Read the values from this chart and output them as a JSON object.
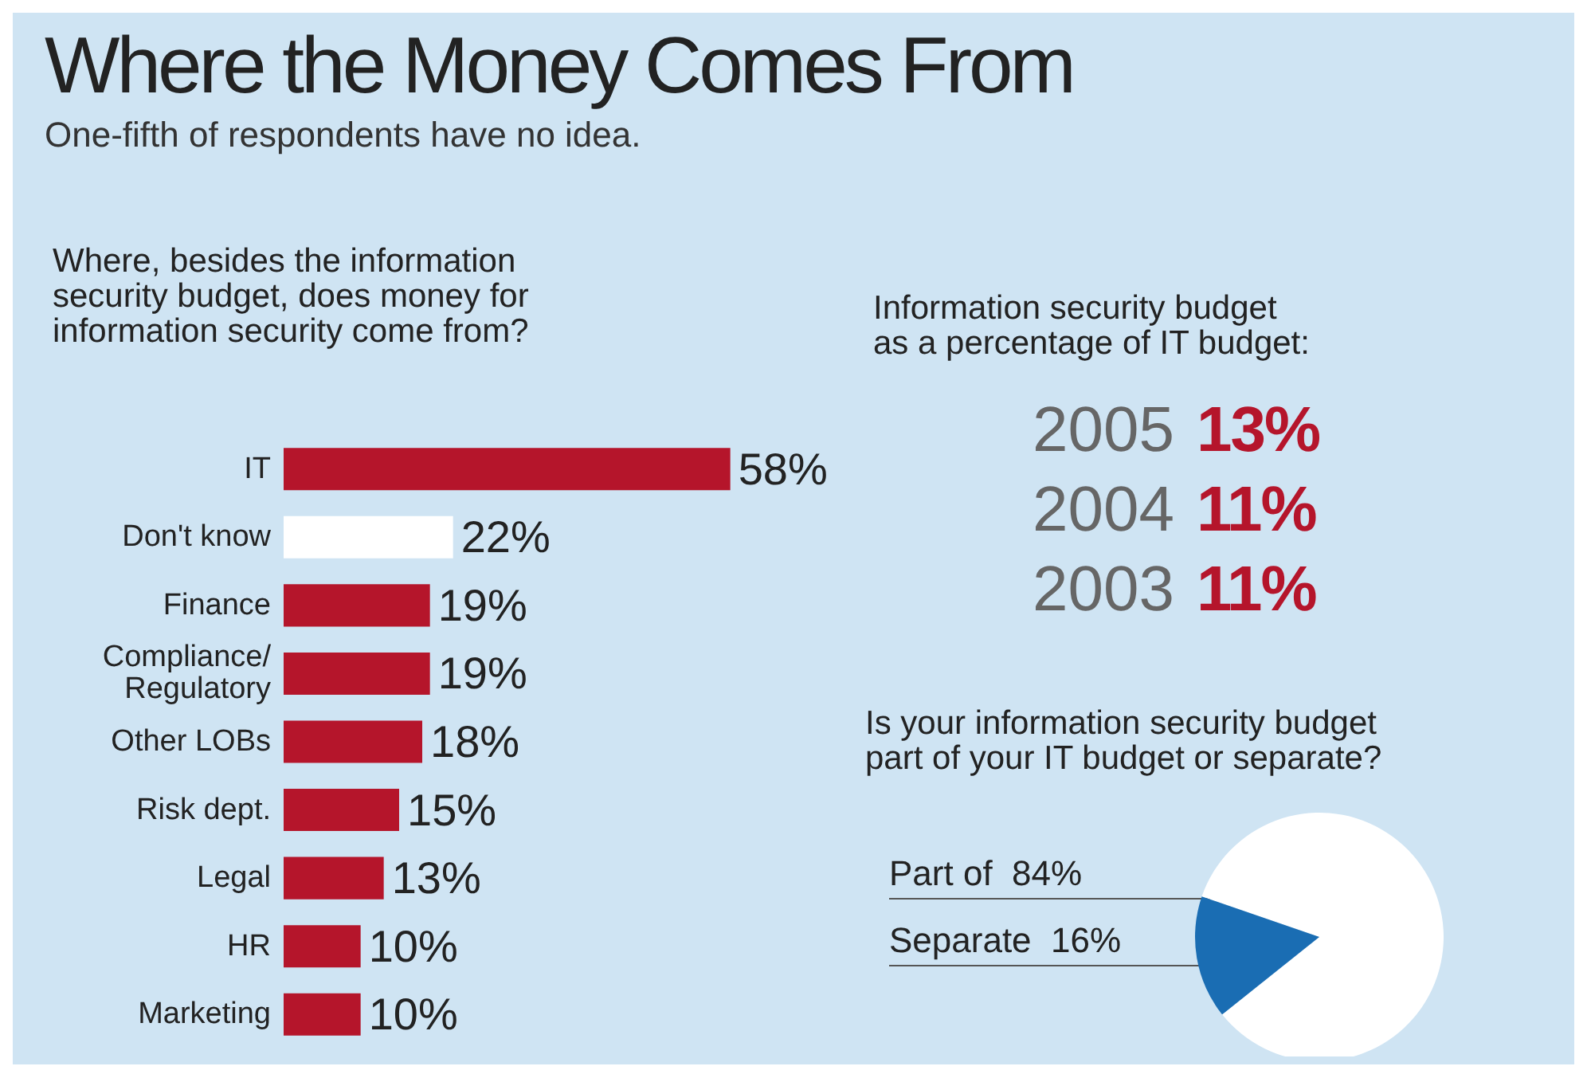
{
  "chart_data": [
    {
      "type": "other",
      "title": "Where the Money Comes From",
      "subtitle": "One-fifth of respondents have no idea."
    },
    {
      "type": "bar",
      "orientation": "horizontal",
      "title": "Where, besides the information\nsecurity budget, does money for\ninformation security come from?",
      "categories": [
        "IT",
        "Don't know",
        "Finance",
        "Compliance/\nRegulatory",
        "Other LOBs",
        "Risk dept.",
        "Legal",
        "HR",
        "Marketing"
      ],
      "values": [
        58,
        22,
        19,
        19,
        18,
        15,
        13,
        10,
        10
      ],
      "colors": [
        "#b5152b",
        "#ffffff",
        "#b5152b",
        "#b5152b",
        "#b5152b",
        "#b5152b",
        "#b5152b",
        "#b5152b",
        "#b5152b"
      ],
      "value_labels": [
        "58%",
        "22%",
        "19%",
        "19%",
        "18%",
        "15%",
        "13%",
        "10%",
        "10%"
      ]
    },
    {
      "type": "other",
      "title": "Information security budget\nas a percentage of IT budget:",
      "categories": [
        "2005",
        "2004",
        "2003"
      ],
      "values": [
        13,
        11,
        11
      ],
      "value_labels": [
        "13%",
        "11%",
        "11%"
      ],
      "colors": [
        "#b5152b",
        "#b5152b",
        "#b5152b"
      ]
    },
    {
      "type": "pie",
      "title": "Is your information security budget\npart of your IT budget or separate?",
      "categories": [
        "Part of",
        "Separate"
      ],
      "values": [
        84,
        16
      ],
      "colors": [
        "#ffffff",
        "#1a6db3"
      ],
      "value_labels": [
        "84%",
        "16%"
      ]
    }
  ]
}
